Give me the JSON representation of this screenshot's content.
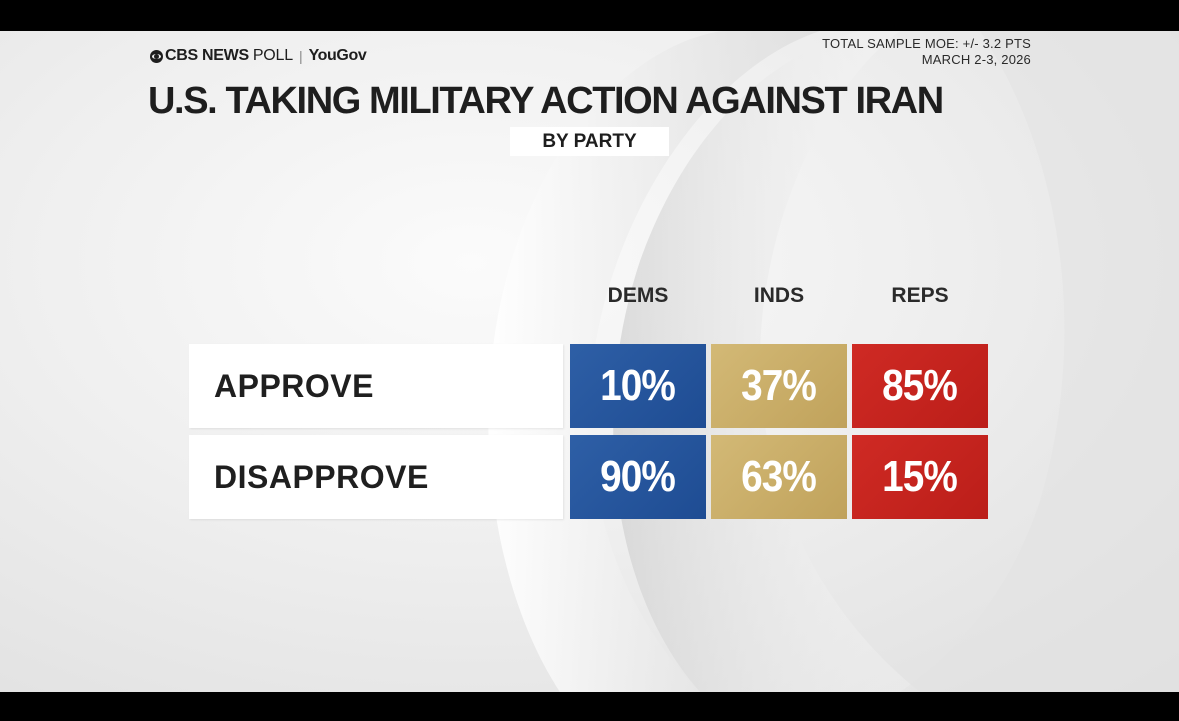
{
  "header": {
    "brand_cbs": "CBS NEWS",
    "brand_poll": "POLL",
    "brand_separator": "|",
    "brand_partner": "YouGov",
    "moe": "TOTAL SAMPLE MOE: +/- 3.2 PTS",
    "date": "MARCH 2-3, 2026"
  },
  "colors": {
    "dems": "#1e4c93",
    "inds": "#c0a25b",
    "reps": "#bb1e19"
  },
  "chart_data": {
    "type": "table",
    "title": "U.S. TAKING MILITARY ACTION AGAINST IRAN",
    "subtitle": "BY PARTY",
    "columns": [
      "DEMS",
      "INDS",
      "REPS"
    ],
    "rows": [
      {
        "label": "APPROVE",
        "values": [
          10,
          37,
          85
        ],
        "display": [
          "10%",
          "37%",
          "85%"
        ]
      },
      {
        "label": "DISAPPROVE",
        "values": [
          90,
          63,
          15
        ],
        "display": [
          "90%",
          "63%",
          "15%"
        ]
      }
    ],
    "unit": "%"
  }
}
